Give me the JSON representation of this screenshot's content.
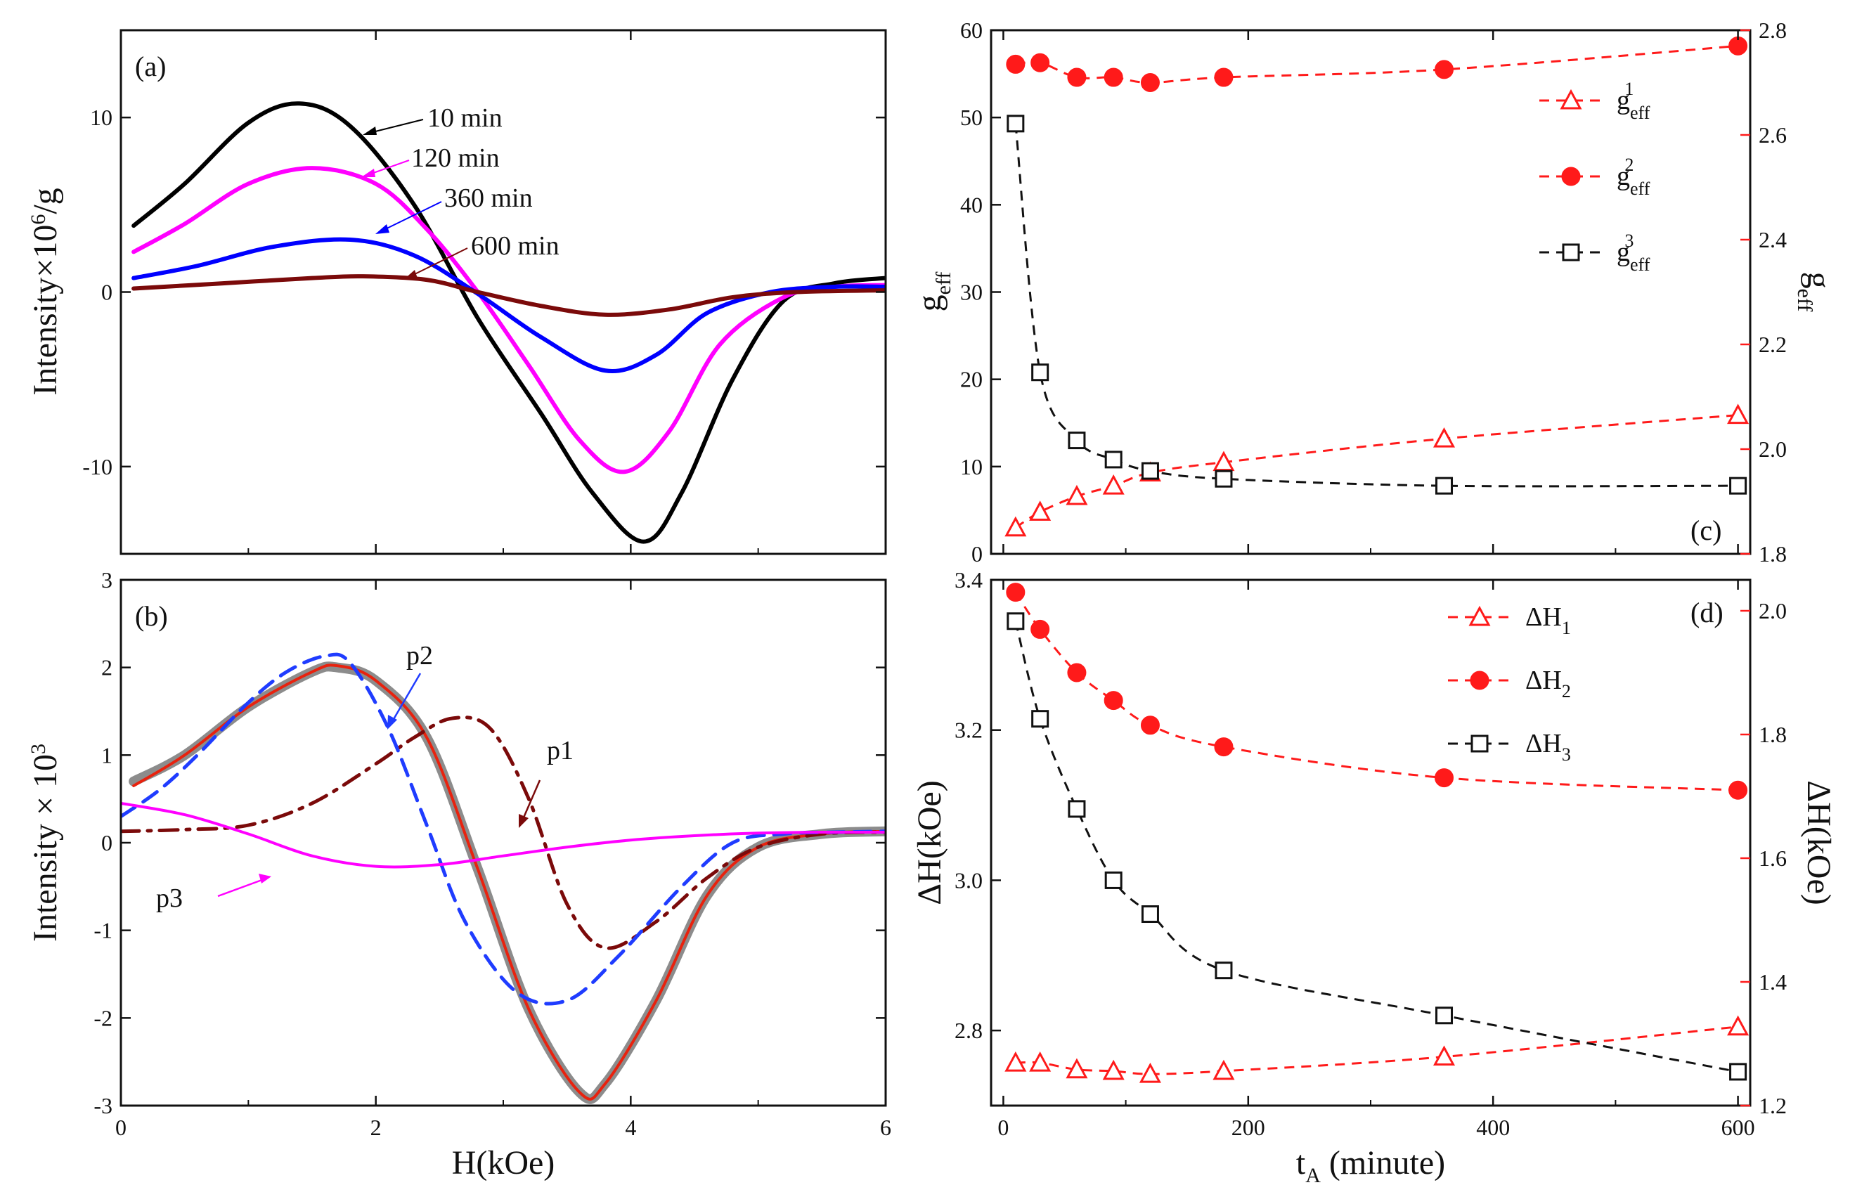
{
  "chart_data": [
    {
      "panel": "(a)",
      "type": "line",
      "ylabel": "Intensity×10^6/g",
      "ylabel_main": "Intensity×10",
      "ylabel_exp": "6",
      "ylabel_tail": "/g",
      "xlim": [
        0,
        6
      ],
      "ylim": [
        -15,
        15
      ],
      "yticks": [
        -10,
        0,
        10
      ],
      "annotations": [
        "10 min",
        "120 min",
        "360 min",
        "600 min"
      ],
      "series": [
        {
          "name": "10 min",
          "color": "#000000",
          "x": [
            0.1,
            0.5,
            1.0,
            1.4,
            1.8,
            2.3,
            2.8,
            3.3,
            3.7,
            4.1,
            4.4,
            4.8,
            5.2,
            5.6,
            6.0
          ],
          "y": [
            3.8,
            6.2,
            9.7,
            10.8,
            9.5,
            5.0,
            -1.5,
            -7.0,
            -11.5,
            -14.3,
            -11.5,
            -5.0,
            -0.5,
            0.5,
            0.8
          ]
        },
        {
          "name": "120 min",
          "color": "#ff00ff",
          "x": [
            0.1,
            0.5,
            1.0,
            1.5,
            2.0,
            2.4,
            2.8,
            3.2,
            3.6,
            3.95,
            4.3,
            4.7,
            5.2,
            5.6,
            6.0
          ],
          "y": [
            2.3,
            3.9,
            6.2,
            7.1,
            6.2,
            3.6,
            0.0,
            -4.2,
            -8.5,
            -10.3,
            -8.0,
            -3.0,
            -0.3,
            0.3,
            0.4
          ]
        },
        {
          "name": "360 min",
          "color": "#0000ff",
          "x": [
            0.1,
            0.6,
            1.2,
            1.8,
            2.3,
            2.8,
            3.3,
            3.8,
            4.2,
            4.6,
            5.1,
            5.6,
            6.0
          ],
          "y": [
            0.8,
            1.5,
            2.6,
            3.0,
            2.1,
            -0.1,
            -2.6,
            -4.5,
            -3.6,
            -1.2,
            0.0,
            0.3,
            0.3
          ]
        },
        {
          "name": "600 min",
          "color": "#7b0a0a",
          "x": [
            0.1,
            0.8,
            1.5,
            1.9,
            2.4,
            2.8,
            3.3,
            3.8,
            4.3,
            4.8,
            5.3,
            6.0
          ],
          "y": [
            0.2,
            0.5,
            0.8,
            0.9,
            0.7,
            0.0,
            -0.8,
            -1.3,
            -1.0,
            -0.3,
            0.0,
            0.1
          ]
        }
      ]
    },
    {
      "panel": "(b)",
      "type": "line",
      "xlabel": "H(kOe)",
      "ylabel": "Intensity × 10^3",
      "ylabel_main": "Intensity × 10",
      "ylabel_exp": "3",
      "xlim": [
        0,
        6
      ],
      "ylim": [
        -3,
        3
      ],
      "xticks": [
        0,
        2,
        4,
        6
      ],
      "yticks": [
        -3,
        -2,
        -1,
        0,
        1,
        2,
        3
      ],
      "annotations": [
        "p1",
        "p2",
        "p3"
      ],
      "series": [
        {
          "name": "data",
          "color": "#8c8c8c",
          "x": [
            0.1,
            0.5,
            1.0,
            1.5,
            1.7,
            2.0,
            2.4,
            2.8,
            3.2,
            3.6,
            3.8,
            4.2,
            4.6,
            5.0,
            5.5,
            6.0
          ],
          "y": [
            0.7,
            1.0,
            1.55,
            1.95,
            2.0,
            1.85,
            1.2,
            -0.3,
            -1.9,
            -2.85,
            -2.75,
            -1.8,
            -0.6,
            -0.05,
            0.1,
            0.13
          ]
        },
        {
          "name": "fit",
          "color": "#e8220e",
          "x": [
            0.1,
            0.5,
            1.0,
            1.5,
            1.7,
            2.0,
            2.4,
            2.8,
            3.2,
            3.6,
            3.8,
            4.2,
            4.6,
            5.0,
            5.5,
            6.0
          ],
          "y": [
            0.65,
            1.0,
            1.55,
            1.95,
            2.02,
            1.85,
            1.2,
            -0.3,
            -1.9,
            -2.85,
            -2.75,
            -1.8,
            -0.6,
            -0.05,
            0.1,
            0.13
          ]
        },
        {
          "name": "p1",
          "color": "#7b0a0a",
          "x": [
            0.0,
            0.5,
            1.0,
            1.5,
            2.0,
            2.3,
            2.6,
            2.9,
            3.2,
            3.5,
            3.8,
            4.2,
            4.6,
            5.0,
            5.5,
            6.0
          ],
          "y": [
            0.13,
            0.15,
            0.2,
            0.45,
            0.9,
            1.2,
            1.42,
            1.3,
            0.5,
            -0.7,
            -1.2,
            -0.9,
            -0.4,
            -0.05,
            0.1,
            0.12
          ]
        },
        {
          "name": "p2",
          "color": "#1f3cff",
          "x": [
            0.0,
            0.3,
            0.6,
            1.0,
            1.3,
            1.6,
            1.8,
            2.1,
            2.4,
            2.7,
            3.1,
            3.5,
            3.9,
            4.4,
            4.8,
            5.2,
            5.6,
            6.0
          ],
          "y": [
            0.3,
            0.6,
            1.0,
            1.6,
            1.95,
            2.13,
            2.05,
            1.3,
            0.2,
            -0.9,
            -1.7,
            -1.8,
            -1.3,
            -0.5,
            0.0,
            0.1,
            0.12,
            0.13
          ]
        },
        {
          "name": "p3",
          "color": "#ff00ff",
          "x": [
            0.0,
            0.5,
            1.0,
            1.5,
            2.0,
            2.5,
            3.0,
            3.5,
            4.0,
            4.5,
            5.0,
            5.5,
            6.0
          ],
          "y": [
            0.45,
            0.32,
            0.1,
            -0.15,
            -0.27,
            -0.25,
            -0.15,
            -0.05,
            0.03,
            0.08,
            0.11,
            0.12,
            0.12
          ]
        }
      ]
    },
    {
      "panel": "(c)",
      "type": "scatter",
      "ylabel": "g_eff",
      "ylabel_main": "g",
      "ylabel_sub": "eff",
      "ylabel_right": "g_eff",
      "xlim": [
        -10,
        610
      ],
      "ylim": [
        0,
        60
      ],
      "ylim_right": [
        1.8,
        2.8
      ],
      "yticks": [
        0,
        10,
        20,
        30,
        40,
        50,
        60
      ],
      "yticks_right": [
        1.8,
        2.0,
        2.2,
        2.4,
        2.6,
        2.8
      ],
      "x": [
        10,
        30,
        60,
        90,
        120,
        180,
        360,
        600
      ],
      "series": [
        {
          "name": "g_eff^1",
          "label": "g",
          "sub": "eff",
          "sup": "1",
          "axis": "right",
          "marker": "open-triangle",
          "color": "#ff1a1a",
          "values": [
            1.85,
            1.88,
            1.91,
            1.93,
            1.955,
            1.975,
            2.02,
            2.065
          ]
        },
        {
          "name": "g_eff^2",
          "label": "g",
          "sub": "eff",
          "sup": "2",
          "axis": "right",
          "marker": "filled-circle",
          "color": "#ff1a1a",
          "values": [
            2.735,
            2.738,
            2.71,
            2.71,
            2.7,
            2.71,
            2.725,
            2.77
          ]
        },
        {
          "name": "g_eff^3",
          "label": "g",
          "sub": "eff",
          "sup": "3",
          "axis": "left",
          "marker": "open-square",
          "color": "#111111",
          "values": [
            49.3,
            20.8,
            13.0,
            10.8,
            9.5,
            8.6,
            7.8,
            7.8
          ]
        }
      ]
    },
    {
      "panel": "(d)",
      "type": "scatter",
      "xlabel": "t_A (minute)",
      "xlabel_main": "t",
      "xlabel_sub": "A",
      "xlabel_tail": " (minute)",
      "ylabel": "ΔH(kOe)",
      "ylabel_right": "ΔH(kOe)",
      "xlim": [
        -10,
        610
      ],
      "ylim": [
        2.7,
        3.4
      ],
      "ylim_right": [
        1.2,
        2.05
      ],
      "xticks": [
        0,
        200,
        400,
        600
      ],
      "yticks": [
        2.8,
        3.0,
        3.2,
        3.4
      ],
      "yticks_right": [
        1.2,
        1.4,
        1.6,
        1.8,
        2.0
      ],
      "x": [
        10,
        30,
        60,
        90,
        120,
        180,
        360,
        600
      ],
      "series": [
        {
          "name": "ΔH_1",
          "label": "ΔH",
          "sub": "1",
          "axis": "left",
          "marker": "open-triangle",
          "color": "#ff1a1a",
          "values": [
            2.757,
            2.757,
            2.748,
            2.746,
            2.742,
            2.746,
            2.765,
            2.805
          ]
        },
        {
          "name": "ΔH_2",
          "label": "ΔH",
          "sub": "2",
          "axis": "right",
          "marker": "filled-circle",
          "color": "#ff1a1a",
          "values": [
            2.03,
            1.97,
            1.9,
            1.855,
            1.815,
            1.78,
            1.73,
            1.71
          ]
        },
        {
          "name": "ΔH_3",
          "label": "ΔH",
          "sub": "3",
          "axis": "left",
          "marker": "open-square",
          "color": "#111111",
          "values": [
            3.345,
            3.215,
            3.095,
            3.0,
            2.955,
            2.88,
            2.82,
            2.745
          ]
        }
      ]
    }
  ]
}
